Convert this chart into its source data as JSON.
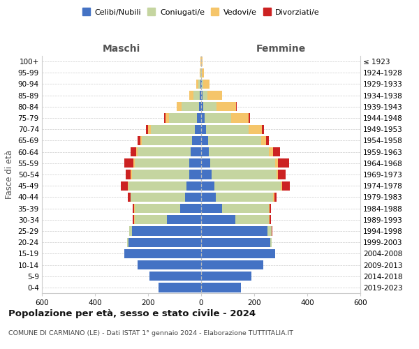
{
  "age_groups": [
    "0-4",
    "5-9",
    "10-14",
    "15-19",
    "20-24",
    "25-29",
    "30-34",
    "35-39",
    "40-44",
    "45-49",
    "50-54",
    "55-59",
    "60-64",
    "65-69",
    "70-74",
    "75-79",
    "80-84",
    "85-89",
    "90-94",
    "95-99",
    "100+"
  ],
  "birth_years": [
    "2019-2023",
    "2014-2018",
    "2009-2013",
    "2004-2008",
    "1999-2003",
    "1994-1998",
    "1989-1993",
    "1984-1988",
    "1979-1983",
    "1974-1978",
    "1969-1973",
    "1964-1968",
    "1959-1963",
    "1954-1958",
    "1949-1953",
    "1944-1948",
    "1939-1943",
    "1934-1938",
    "1929-1933",
    "1924-1928",
    "≤ 1923"
  ],
  "male": {
    "celibi": [
      160,
      195,
      240,
      290,
      275,
      260,
      130,
      80,
      60,
      55,
      45,
      45,
      40,
      35,
      25,
      15,
      8,
      5,
      2,
      1,
      0
    ],
    "coniugati": [
      0,
      0,
      0,
      0,
      5,
      10,
      120,
      170,
      205,
      220,
      215,
      205,
      200,
      190,
      165,
      105,
      65,
      25,
      8,
      2,
      1
    ],
    "vedovi": [
      0,
      0,
      0,
      0,
      0,
      0,
      2,
      2,
      2,
      2,
      5,
      5,
      5,
      5,
      10,
      15,
      18,
      15,
      8,
      2,
      1
    ],
    "divorziati": [
      0,
      0,
      0,
      0,
      0,
      0,
      5,
      5,
      10,
      25,
      20,
      35,
      22,
      10,
      8,
      4,
      2,
      1,
      0,
      0,
      0
    ]
  },
  "female": {
    "nubili": [
      150,
      190,
      235,
      280,
      260,
      250,
      130,
      80,
      55,
      50,
      40,
      35,
      30,
      25,
      18,
      12,
      7,
      4,
      2,
      1,
      1
    ],
    "coniugate": [
      0,
      0,
      0,
      0,
      5,
      15,
      125,
      175,
      215,
      250,
      245,
      245,
      225,
      200,
      160,
      100,
      50,
      20,
      7,
      2,
      0
    ],
    "vedove": [
      0,
      0,
      0,
      0,
      0,
      2,
      2,
      2,
      5,
      5,
      5,
      10,
      15,
      20,
      50,
      68,
      75,
      55,
      22,
      8,
      4
    ],
    "divorziate": [
      0,
      0,
      0,
      0,
      0,
      2,
      5,
      5,
      10,
      30,
      28,
      42,
      28,
      10,
      8,
      4,
      2,
      1,
      0,
      0,
      0
    ]
  },
  "colors": {
    "celibi_nubili": "#4472C4",
    "coniugati_e": "#C5D5A0",
    "vedovi_e": "#F5C56A",
    "divorziati_e": "#CC2222"
  },
  "title": "Popolazione per età, sesso e stato civile - 2024",
  "subtitle": "COMUNE DI CARMIANO (LE) - Dati ISTAT 1° gennaio 2024 - Elaborazione TUTTITALIA.IT",
  "xlabel_left": "Maschi",
  "xlabel_right": "Femmine",
  "ylabel_left": "Fasce di età",
  "xmin": -600,
  "xmax": 600,
  "xticks": [
    -600,
    -400,
    -200,
    0,
    200,
    400,
    600
  ],
  "xticklabels": [
    "600",
    "400",
    "200",
    "0",
    "200",
    "400",
    "600"
  ],
  "legend_labels": [
    "Celibi/Nubili",
    "Coniugati/e",
    "Vedovi/e",
    "Divorziati/e"
  ],
  "bg_color": "#ffffff",
  "grid_color": "#cccccc"
}
